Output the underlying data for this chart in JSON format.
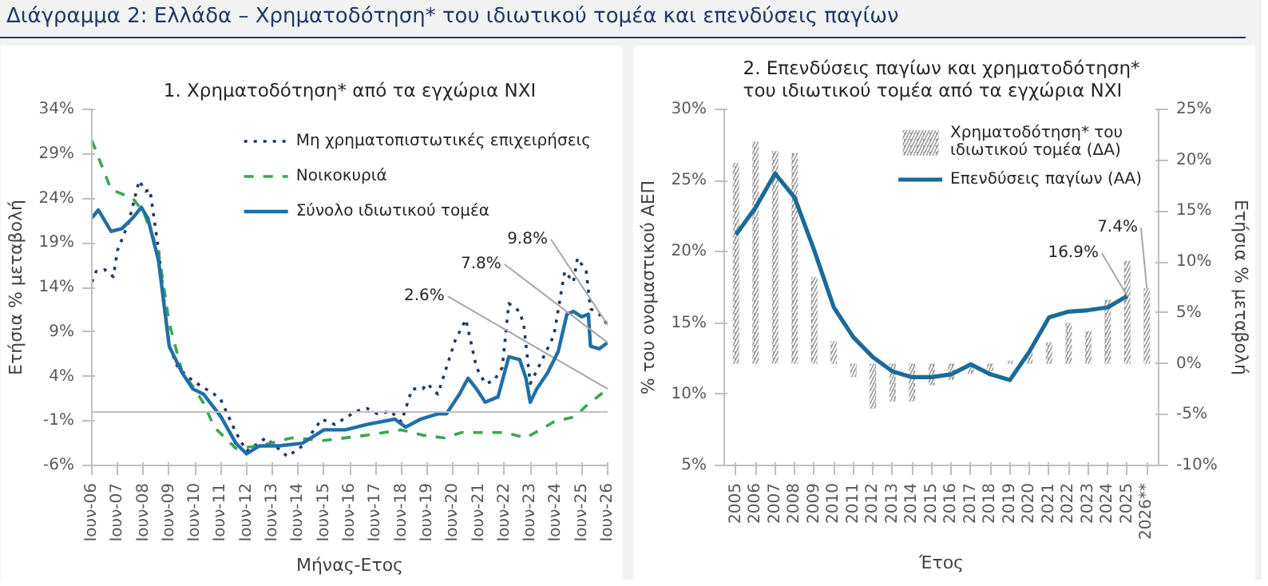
{
  "chart_data": [
    {
      "type": "line",
      "title": "1. Χρηματοδότηση* από τα εγχώρια ΝΧΙ",
      "xlabel": "Μήνας-Ετος",
      "ylabel": "Ετήσια % μεταβολή",
      "annotations": [
        "Διάγραμμα 2: Ελλάδα – Χρηματοδότηση* του ιδιωτικού τομέα και επενδύσεις παγίων"
      ],
      "xlim": [
        "2006-06",
        "2026-06"
      ],
      "xticks": [
        {
          "value": "2006-06",
          "label": "Ιουν-06"
        },
        {
          "value": "2007-06",
          "label": "Ιουν-07"
        },
        {
          "value": "2008-06",
          "label": "Ιουν-08"
        },
        {
          "value": "2009-06",
          "label": "Ιουν-09"
        },
        {
          "value": "2010-06",
          "label": "Ιουν-10"
        },
        {
          "value": "2011-06",
          "label": "Ιουν-11"
        },
        {
          "value": "2012-06",
          "label": "Ιουν-12"
        },
        {
          "value": "2013-06",
          "label": "Ιουν-13"
        },
        {
          "value": "2014-06",
          "label": "Ιουν-14"
        },
        {
          "value": "2015-06",
          "label": "Ιουν-15"
        },
        {
          "value": "2016-06",
          "label": "Ιουν-16"
        },
        {
          "value": "2017-06",
          "label": "Ιουν-17"
        },
        {
          "value": "2018-06",
          "label": "Ιουν-18"
        },
        {
          "value": "2019-06",
          "label": "Ιουν-19"
        },
        {
          "value": "2020-06",
          "label": "Ιουν-20"
        },
        {
          "value": "2021-06",
          "label": "Ιουν-21"
        },
        {
          "value": "2022-06",
          "label": "Ιουν-22"
        },
        {
          "value": "2023-06",
          "label": "Ιουν-23"
        },
        {
          "value": "2024-06",
          "label": "Ιουν-24"
        },
        {
          "value": "2025-06",
          "label": "Ιουν-25"
        },
        {
          "value": "2026-06",
          "label": "Ιουν-26"
        }
      ],
      "ylim": [
        -6,
        34
      ],
      "yticks": [
        {
          "value": -6,
          "label": "-6%"
        },
        {
          "value": -1,
          "label": "-1%"
        },
        {
          "value": 4,
          "label": "4%"
        },
        {
          "value": 9,
          "label": "9%"
        },
        {
          "value": 14,
          "label": "14%"
        },
        {
          "value": 19,
          "label": "19%"
        },
        {
          "value": 24,
          "label": "24%"
        },
        {
          "value": 29,
          "label": "29%"
        },
        {
          "value": 34,
          "label": "34%"
        }
      ],
      "ref_lines": [
        {
          "axis": "y",
          "value": 0,
          "color": "#bfbfbf"
        }
      ],
      "grid": false,
      "legend": "top right",
      "series": [
        {
          "name": "Μη χρηματοπιστωτικές επιχειρήσεις",
          "color": "#1f3864",
          "line_style": "dotted",
          "x": [
            "2006-06",
            "2006-08",
            "2006-12",
            "2007-04",
            "2007-06",
            "2007-11",
            "2008-04",
            "2008-07",
            "2008-09",
            "2009-01",
            "2009-06",
            "2009-10",
            "2010-05",
            "2011-03",
            "2011-06",
            "2012-01",
            "2012-06",
            "2013-03",
            "2014-01",
            "2014-08",
            "2015-05",
            "2015-11",
            "2016-09",
            "2017-02",
            "2017-07",
            "2018-01",
            "2018-06",
            "2018-11",
            "2019-04",
            "2019-06",
            "2019-11",
            "2020-03",
            "2020-07",
            "2020-12",
            "2021-05",
            "2021-09",
            "2022-01",
            "2022-05",
            "2022-08",
            "2023-01",
            "2023-03",
            "2023-06",
            "2023-11",
            "2024-05",
            "2024-10",
            "2025-02",
            "2025-04",
            "2025-08",
            "2025-10",
            "2026-02",
            "2026-06"
          ],
          "values": [
            14.6,
            15.8,
            16,
            15.2,
            18.2,
            21.2,
            26,
            24.8,
            25,
            18.2,
            7.4,
            5,
            3.5,
            2.0,
            1.4,
            -2.3,
            -4.4,
            -2.9,
            -5,
            -3.8,
            -0.8,
            -1.4,
            0.1,
            0.4,
            -0.2,
            0.1,
            -1.1,
            2.6,
            2.6,
            3.2,
            2.0,
            5.0,
            8.0,
            10.4,
            5.0,
            3.2,
            3.5,
            5.0,
            12.2,
            11.3,
            9.8,
            3.2,
            5.6,
            8.6,
            15.8,
            14.6,
            17.3,
            15.8,
            11.6,
            11,
            9.8
          ],
          "value_labels": [
            null,
            null,
            null,
            null,
            null,
            null,
            null,
            null,
            null,
            null,
            null,
            null,
            null,
            null,
            null,
            null,
            null,
            null,
            null,
            null,
            null,
            null,
            null,
            null,
            null,
            null,
            null,
            null,
            null,
            null,
            null,
            null,
            null,
            null,
            null,
            null,
            null,
            null,
            null,
            null,
            null,
            null,
            null,
            null,
            null,
            null,
            null,
            null,
            null,
            null,
            "9.8%"
          ]
        },
        {
          "name": "Νοικοκυριά",
          "color": "#3aa655",
          "line_style": "dashed",
          "x": [
            "2006-06",
            "2007-03",
            "2008-01",
            "2008-06",
            "2009-01",
            "2009-06",
            "2009-12",
            "2010-05",
            "2010-10",
            "2011-03",
            "2012-01",
            "2012-12",
            "2014-03",
            "2015-06",
            "2017-02",
            "2018-06",
            "2019-04",
            "2020-02",
            "2020-10",
            "2022-06",
            "2023-04",
            "2024-05",
            "2025-03",
            "2025-08",
            "2026-06"
          ],
          "values": [
            30.5,
            25,
            24,
            22.5,
            18,
            10,
            4.5,
            2.9,
            1.0,
            -1.7,
            -4.1,
            -3.8,
            -2.9,
            -3.2,
            -2.6,
            -2.0,
            -2.6,
            -2.9,
            -2.3,
            -2.3,
            -2.9,
            -1.1,
            -0.5,
            0.7,
            2.6
          ],
          "value_labels": [
            null,
            null,
            null,
            null,
            null,
            null,
            null,
            null,
            null,
            null,
            null,
            null,
            null,
            null,
            null,
            null,
            null,
            null,
            null,
            null,
            null,
            null,
            null,
            null,
            "2.6%"
          ]
        },
        {
          "name": "Σύνολο ιδιωτικού τομέα",
          "color": "#1f6fa8",
          "line_style": "solid",
          "x": [
            "2006-06",
            "2006-09",
            "2007-03",
            "2007-08",
            "2008-01",
            "2008-05",
            "2008-08",
            "2009-01",
            "2009-06",
            "2009-12",
            "2010-05",
            "2010-10",
            "2011-06",
            "2012-01",
            "2012-06",
            "2012-12",
            "2013-09",
            "2014-08",
            "2015-06",
            "2016-04",
            "2017-02",
            "2018-03",
            "2018-08",
            "2019-03",
            "2019-11",
            "2020-03",
            "2020-09",
            "2021-01",
            "2021-05",
            "2021-09",
            "2022-03",
            "2022-08",
            "2023-01",
            "2023-04",
            "2023-06",
            "2023-09",
            "2024-02",
            "2024-07",
            "2024-11",
            "2025-02",
            "2025-06",
            "2025-09",
            "2025-10",
            "2026-02",
            "2026-06"
          ],
          "values": [
            21.8,
            22.7,
            20.3,
            20.6,
            21.8,
            23,
            21.8,
            17,
            7.4,
            4.4,
            2.6,
            2.0,
            -0.5,
            -3.5,
            -4.7,
            -3.8,
            -3.8,
            -3.5,
            -2.0,
            -2.0,
            -1.4,
            -0.8,
            -1.7,
            -0.8,
            -0.2,
            -0.2,
            2.0,
            3.8,
            2.6,
            1.1,
            1.7,
            6.2,
            5.9,
            3.8,
            1.1,
            2.6,
            4.4,
            6.8,
            11,
            11.3,
            10.7,
            11,
            7.4,
            7.1,
            7.8
          ],
          "value_labels": [
            null,
            null,
            null,
            null,
            null,
            null,
            null,
            null,
            null,
            null,
            null,
            null,
            null,
            null,
            null,
            null,
            null,
            null,
            null,
            null,
            null,
            null,
            null,
            null,
            null,
            null,
            null,
            null,
            null,
            null,
            null,
            null,
            null,
            null,
            null,
            null,
            null,
            null,
            null,
            null,
            null,
            null,
            null,
            null,
            "7.8%"
          ]
        }
      ]
    },
    {
      "type": "bar",
      "title": "2. Επενδύσεις παγίων και χρηματοδότηση* του ιδιωτικού τομέα από τα εγχώρια ΝΧΙ",
      "xlabel": "Έτος",
      "ylabel": "% του ονομαστικού ΑΕΠ",
      "y2label": "Ετήσια % μεταβολή",
      "categories": [
        "2005",
        "2006",
        "2007",
        "2008",
        "2009",
        "2010",
        "2011",
        "2012",
        "2013",
        "2014",
        "2015",
        "2016",
        "2017",
        "2018",
        "2019",
        "2020",
        "2021",
        "2022",
        "2023",
        "2024",
        "2025",
        "2026**"
      ],
      "ylim": [
        5,
        30
      ],
      "yticks": [
        {
          "value": 5,
          "label": "5%"
        },
        {
          "value": 10,
          "label": "10%"
        },
        {
          "value": 15,
          "label": "15%"
        },
        {
          "value": 20,
          "label": "20%"
        },
        {
          "value": 25,
          "label": "25%"
        },
        {
          "value": 30,
          "label": "30%"
        }
      ],
      "y2lim": [
        -10,
        25
      ],
      "y2ticks": [
        {
          "value": -10,
          "label": "-10%"
        },
        {
          "value": -5,
          "label": "-5%"
        },
        {
          "value": 0,
          "label": "0%"
        },
        {
          "value": 5,
          "label": "5%"
        },
        {
          "value": 10,
          "label": "10%"
        },
        {
          "value": 15,
          "label": "15%"
        },
        {
          "value": 20,
          "label": "20%"
        },
        {
          "value": 25,
          "label": "25%"
        }
      ],
      "grid": false,
      "legend": "top right",
      "series": [
        {
          "name": "Χρηματοδότηση* του ιδιωτικού τομέα (ΔΑ)",
          "type": "bar",
          "axis": "y2",
          "color": "#999999",
          "values": [
            19.7,
            21.8,
            20.9,
            20.7,
            8.5,
            2.2,
            -1.3,
            -4.4,
            -3.7,
            -3.7,
            -2.1,
            -1.6,
            -1.0,
            -0.7,
            0.3,
            1.1,
            2.1,
            4.0,
            3.2,
            6.3,
            10.1,
            7.4
          ],
          "value_labels": [
            null,
            null,
            null,
            null,
            null,
            null,
            null,
            null,
            null,
            null,
            null,
            null,
            null,
            null,
            null,
            null,
            null,
            null,
            null,
            null,
            null,
            "7.4%"
          ]
        },
        {
          "name": "Επενδύσεις παγίων (ΑΑ)",
          "type": "line",
          "color": "#1a6a9a",
          "values": [
            21.2,
            23.1,
            25.5,
            23.8,
            20.1,
            16.1,
            14.0,
            12.6,
            11.6,
            11.2,
            11.2,
            11.4,
            12.1,
            11.4,
            11.0,
            13.0,
            15.4,
            15.8,
            15.9,
            16.1,
            16.9,
            null
          ],
          "value_labels": [
            null,
            null,
            null,
            null,
            null,
            null,
            null,
            null,
            null,
            null,
            null,
            null,
            null,
            null,
            null,
            null,
            null,
            null,
            null,
            null,
            "16.9%",
            null
          ]
        }
      ]
    }
  ]
}
